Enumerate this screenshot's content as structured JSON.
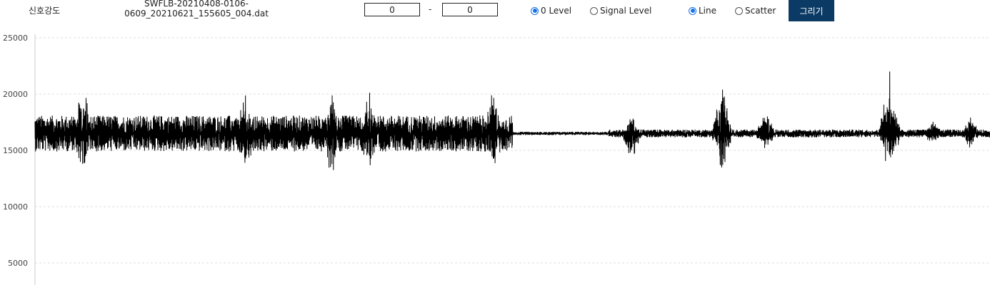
{
  "header": {
    "title": "신호강도",
    "file_name": "SWFLB-20210408-0106-\n0609_20210621_155605_004.dat",
    "range_start": "0",
    "range_separator": "-",
    "range_end": "0",
    "level_options": [
      {
        "label": "0 Level",
        "checked": true
      },
      {
        "label": "Signal Level",
        "checked": false
      }
    ],
    "plot_options": [
      {
        "label": "Line",
        "checked": true
      },
      {
        "label": "Scatter",
        "checked": false
      }
    ],
    "draw_label": "그리기"
  },
  "chart_data": {
    "type": "line",
    "title": "",
    "xlabel": "",
    "ylabel": "",
    "y_ticks": [
      "25000",
      "20000",
      "15000",
      "10000",
      "5000"
    ],
    "ylim": [
      3000,
      25000
    ],
    "baseline": 16500,
    "grid": true,
    "line_color": "#000000",
    "segments": [
      {
        "x_start": 0.0,
        "x_end": 0.5,
        "amplitude": 1600
      },
      {
        "x_start": 0.5,
        "x_end": 0.6,
        "amplitude": 150
      },
      {
        "x_start": 0.6,
        "x_end": 1.0,
        "amplitude": 350
      }
    ],
    "bursts": [
      {
        "x": 0.05,
        "peak": 21300,
        "trough": 11900
      },
      {
        "x": 0.22,
        "peak": 20200,
        "trough": 12100
      },
      {
        "x": 0.31,
        "peak": 20700,
        "trough": 12100
      },
      {
        "x": 0.35,
        "peak": 20600,
        "trough": 12600
      },
      {
        "x": 0.48,
        "peak": 20700,
        "trough": 12100
      },
      {
        "x": 0.625,
        "peak": 18200,
        "trough": 13900
      },
      {
        "x": 0.72,
        "peak": 21200,
        "trough": 11700
      },
      {
        "x": 0.765,
        "peak": 18500,
        "trough": 14700
      },
      {
        "x": 0.895,
        "peak": 22300,
        "trough": 11800
      },
      {
        "x": 0.94,
        "peak": 17800,
        "trough": 15300
      },
      {
        "x": 0.98,
        "peak": 18200,
        "trough": 14900
      }
    ]
  }
}
